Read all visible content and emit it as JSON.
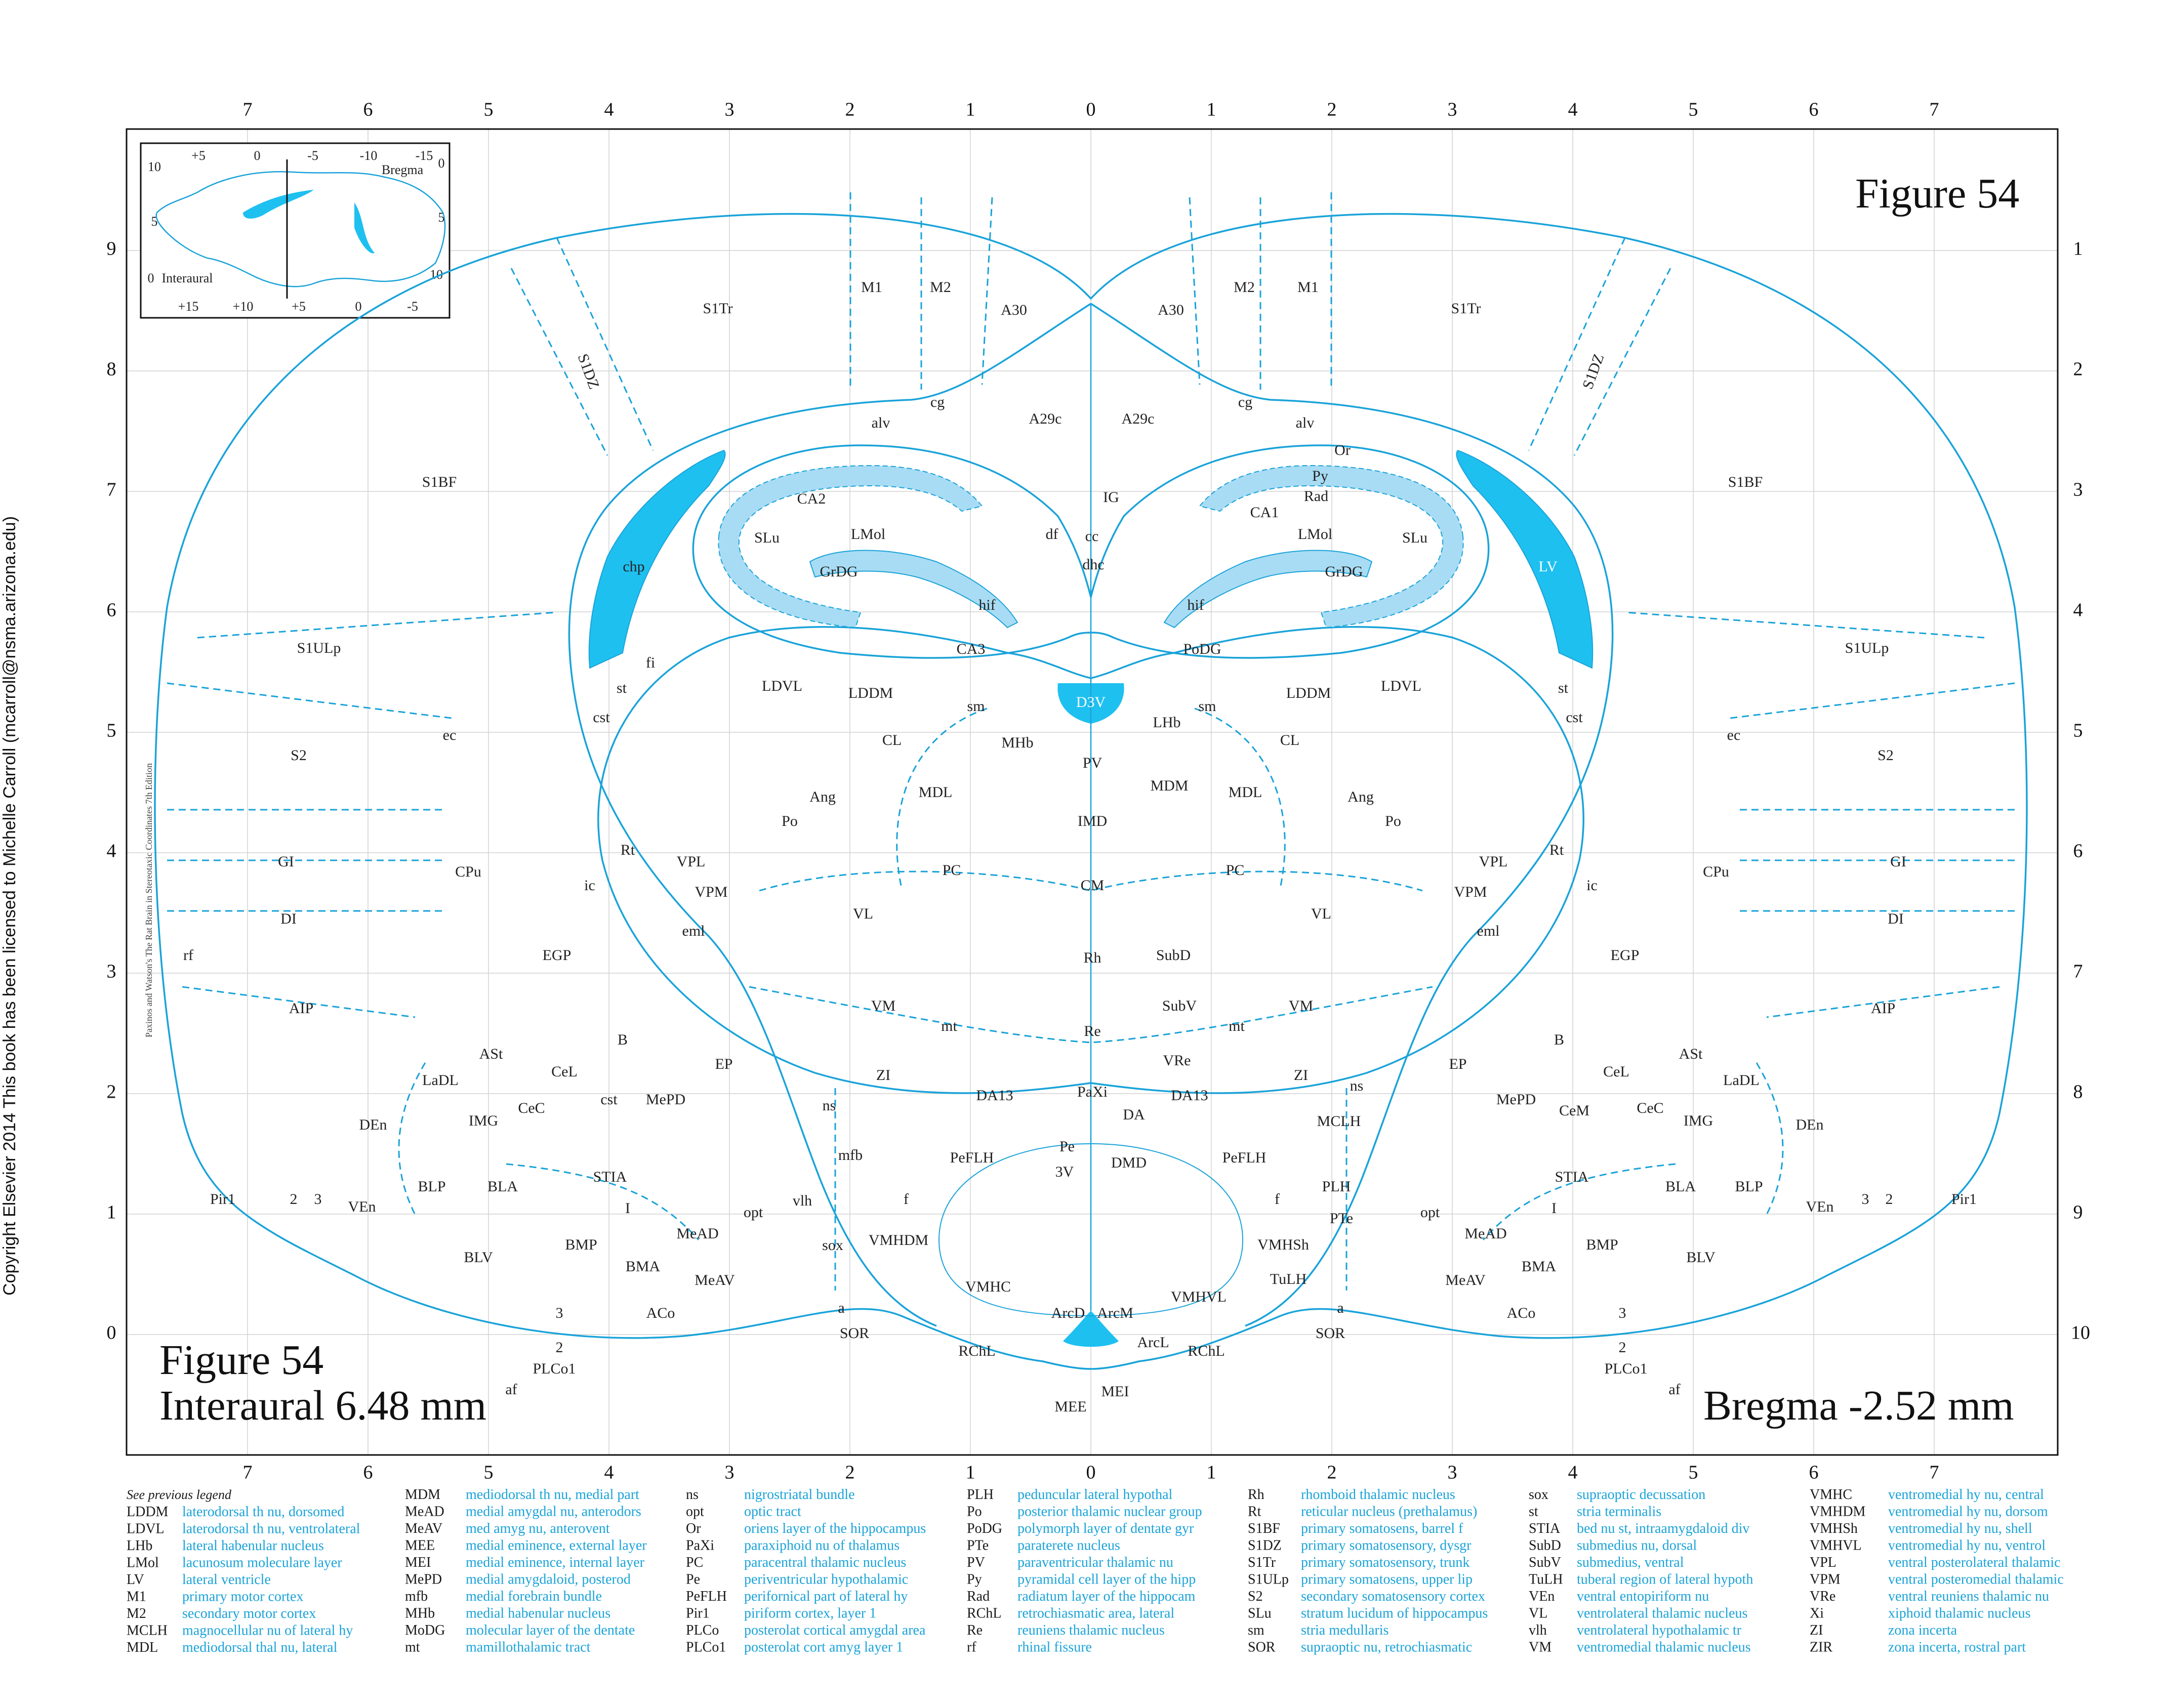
{
  "side_note": "Copyright Elsevier 2014 This book has been licensed to Michelle Carroll (mcarroll@nsma.arizona.edu)",
  "book_title": "Paxinos and Watson's The Rat Brain in Stereotaxic Coordinates    7th Edition",
  "figure_label": "Figure 54",
  "interaural_label": "Interaural 6.48 mm",
  "bregma_label": "Bregma -2.52 mm",
  "top_ticks": [
    "7",
    "6",
    "5",
    "4",
    "3",
    "2",
    "1",
    "0",
    "1",
    "2",
    "3",
    "4",
    "5",
    "6",
    "7"
  ],
  "bottom_ticks": [
    "7",
    "6",
    "5",
    "4",
    "3",
    "2",
    "1",
    "0",
    "1",
    "2",
    "3",
    "4",
    "5",
    "6",
    "7"
  ],
  "left_ticks": [
    "9",
    "8",
    "7",
    "6",
    "5",
    "4",
    "3",
    "2",
    "1",
    "0"
  ],
  "right_ticks": [
    "1",
    "2",
    "3",
    "4",
    "5",
    "6",
    "7",
    "8",
    "9",
    "10"
  ],
  "inset": {
    "top_ticks": [
      "+5",
      "0",
      "-5",
      "-10",
      "-15"
    ],
    "bottom_ticks": [
      "+15",
      "+10",
      "+5",
      "0",
      "-5"
    ],
    "left_ticks": [
      "10",
      "5",
      "0"
    ],
    "right_ticks": [
      "0",
      "5",
      "10"
    ],
    "bregma": "Bregma",
    "interaural": "Interaural"
  },
  "colors": {
    "line": "#1aa3d9",
    "fill": "#1ec0f0",
    "light_fill": "#a8dcf4",
    "legend_text": "#1aa3d9"
  },
  "regions": {
    "M1": "M1",
    "M2": "M2",
    "A30": "A30",
    "S1Tr": "S1Tr",
    "S1DZ": "S1DZ",
    "S1BF": "S1BF",
    "cg": "cg",
    "A29c": "A29c",
    "alv": "alv",
    "Or": "Or",
    "Py": "Py",
    "Rad": "Rad",
    "CA1": "CA1",
    "CA2": "CA2",
    "CA3": "CA3",
    "SLu": "SLu",
    "LMol": "LMol",
    "GrDG": "GrDG",
    "PoDG": "PoDG",
    "hif": "hif",
    "df": "df",
    "cc": "cc",
    "dhc": "dhc",
    "IG": "IG",
    "chp": "chp",
    "LV": "LV",
    "fi": "fi",
    "st": "st",
    "cst": "cst",
    "ec": "ec",
    "S1ULp": "S1ULp",
    "S2": "S2",
    "GI": "GI",
    "DI": "DI",
    "AIP": "AIP",
    "rf": "rf",
    "CPu": "CPu",
    "LDVL": "LDVL",
    "LDDM": "LDDM",
    "sm": "sm",
    "D3V": "D3V",
    "LHb": "LHb",
    "MHb": "MHb",
    "CL": "CL",
    "PV": "PV",
    "MDM": "MDM",
    "MDL": "MDL",
    "Ang": "Ang",
    "Po": "Po",
    "IMD": "IMD",
    "Rt": "Rt",
    "VPL": "VPL",
    "VPM": "VPM",
    "ic": "ic",
    "PC": "PC",
    "CM": "CM",
    "VL": "VL",
    "eml": "eml",
    "EGP": "EGP",
    "Rh": "Rh",
    "SubD": "SubD",
    "VM": "VM",
    "mt": "mt",
    "Re": "Re",
    "SubV": "SubV",
    "EP": "EP",
    "ZI": "ZI",
    "VRe": "VRe",
    "ASt": "ASt",
    "B": "B",
    "LaDL": "LaDL",
    "CeL": "CeL",
    "CeC": "CeC",
    "CeM": "CeM",
    "IMG": "IMG",
    "MePD": "MePD",
    "ns": "ns",
    "DA13": "DA13",
    "PaXi": "PaXi",
    "DA": "DA",
    "DEn": "DEn",
    "mfb": "mfb",
    "PeFLH": "PeFLH",
    "Pe": "Pe",
    "3V": "3V",
    "DMD": "DMD",
    "MCLH": "MCLH",
    "STIA": "STIA",
    "BLP": "BLP",
    "BLA": "BLA",
    "f": "f",
    "vlh": "vlh",
    "PLH": "PLH",
    "Pir1": "Pir1",
    "2": "2",
    "3": "3",
    "VEn": "VEn",
    "I": "I",
    "MeAD": "MeAD",
    "opt": "opt",
    "PTe": "PTe",
    "VMHDM": "VMHDM",
    "VMHSh": "VMHSh",
    "sox": "sox",
    "BLV": "BLV",
    "BMP": "BMP",
    "BMA": "BMA",
    "MeAV": "MeAV",
    "VMHC": "VMHC",
    "TuLH": "TuLH",
    "VMHVL": "VMHVL",
    "ArcD": "ArcD",
    "ArcM": "ArcM",
    "ACo": "ACo",
    "a": "a",
    "SOR": "SOR",
    "ArcL": "ArcL",
    "RChL": "RChL",
    "PLCo1": "PLCo1",
    "af": "af",
    "MEE": "MEE",
    "MEI": "MEI"
  },
  "legend": {
    "heading": "See previous legend",
    "columns": [
      [
        {
          "abbr": "LDDM",
          "full": "laterodorsal th nu, dorsomed"
        },
        {
          "abbr": "LDVL",
          "full": "laterodorsal th nu, ventrolateral"
        },
        {
          "abbr": "LHb",
          "full": "lateral habenular nucleus"
        },
        {
          "abbr": "LMol",
          "full": "lacunosum moleculare layer"
        },
        {
          "abbr": "LV",
          "full": "lateral ventricle"
        },
        {
          "abbr": "M1",
          "full": "primary motor cortex"
        },
        {
          "abbr": "M2",
          "full": "secondary motor cortex"
        },
        {
          "abbr": "MCLH",
          "full": "magnocellular nu of lateral hy"
        },
        {
          "abbr": "MDL",
          "full": "mediodorsal thal nu, lateral"
        }
      ],
      [
        {
          "abbr": "MDM",
          "full": "mediodorsal th nu, medial part"
        },
        {
          "abbr": "MeAD",
          "full": "medial amygdal nu, anterodors"
        },
        {
          "abbr": "MeAV",
          "full": "med amyg nu, anterovent"
        },
        {
          "abbr": "MEE",
          "full": "medial eminence, external layer"
        },
        {
          "abbr": "MEI",
          "full": "medial eminence, internal layer"
        },
        {
          "abbr": "MePD",
          "full": "medial amygdaloid, posterod"
        },
        {
          "abbr": "mfb",
          "full": "medial forebrain bundle"
        },
        {
          "abbr": "MHb",
          "full": "medial habenular nucleus"
        },
        {
          "abbr": "MoDG",
          "full": "molecular layer of the dentate"
        },
        {
          "abbr": "mt",
          "full": "mamillothalamic tract"
        }
      ],
      [
        {
          "abbr": "ns",
          "full": "nigrostriatal bundle"
        },
        {
          "abbr": "opt",
          "full": "optic tract"
        },
        {
          "abbr": "Or",
          "full": "oriens layer of the hippocampus"
        },
        {
          "abbr": "PaXi",
          "full": "paraxiphoid nu of thalamus"
        },
        {
          "abbr": "PC",
          "full": "paracentral thalamic nucleus"
        },
        {
          "abbr": "Pe",
          "full": "periventricular hypothalamic"
        },
        {
          "abbr": "PeFLH",
          "full": "perifornical part of lateral hy"
        },
        {
          "abbr": "Pir1",
          "full": "piriform cortex, layer 1"
        },
        {
          "abbr": "PLCo",
          "full": "posterolat cortical amygdal area"
        },
        {
          "abbr": "PLCo1",
          "full": "posterolat cort amyg layer 1"
        }
      ],
      [
        {
          "abbr": "PLH",
          "full": "peduncular lateral hypothal"
        },
        {
          "abbr": "Po",
          "full": "posterior thalamic nuclear group"
        },
        {
          "abbr": "PoDG",
          "full": "polymorph layer of dentate gyr"
        },
        {
          "abbr": "PTe",
          "full": "paraterete nucleus"
        },
        {
          "abbr": "PV",
          "full": "paraventricular thalamic nu"
        },
        {
          "abbr": "Py",
          "full": "pyramidal cell layer of the hipp"
        },
        {
          "abbr": "Rad",
          "full": "radiatum layer of the hippocam"
        },
        {
          "abbr": "RChL",
          "full": "retrochiasmatic area, lateral"
        },
        {
          "abbr": "Re",
          "full": "reuniens thalamic nucleus"
        },
        {
          "abbr": "rf",
          "full": "rhinal fissure"
        }
      ],
      [
        {
          "abbr": "Rh",
          "full": "rhomboid thalamic nucleus"
        },
        {
          "abbr": "Rt",
          "full": "reticular nucleus (prethalamus)"
        },
        {
          "abbr": "S1BF",
          "full": "primary somatosens, barrel f"
        },
        {
          "abbr": "S1DZ",
          "full": "primary somatosensory, dysgr"
        },
        {
          "abbr": "S1Tr",
          "full": "primary somatosensory, trunk"
        },
        {
          "abbr": "S1ULp",
          "full": "primary somatosens, upper lip"
        },
        {
          "abbr": "S2",
          "full": "secondary somatosensory cortex"
        },
        {
          "abbr": "SLu",
          "full": "stratum lucidum of hippocampus"
        },
        {
          "abbr": "sm",
          "full": "stria medullaris"
        },
        {
          "abbr": "SOR",
          "full": "supraoptic nu, retrochiasmatic"
        }
      ],
      [
        {
          "abbr": "sox",
          "full": "supraoptic decussation"
        },
        {
          "abbr": "st",
          "full": "stria terminalis"
        },
        {
          "abbr": "STIA",
          "full": "bed nu st, intraamygdaloid div"
        },
        {
          "abbr": "SubD",
          "full": "submedius nu, dorsal"
        },
        {
          "abbr": "SubV",
          "full": "submedius, ventral"
        },
        {
          "abbr": "TuLH",
          "full": "tuberal region of lateral hypoth"
        },
        {
          "abbr": "VEn",
          "full": "ventral entopiriform nu"
        },
        {
          "abbr": "VL",
          "full": "ventrolateral thalamic nucleus"
        },
        {
          "abbr": "vlh",
          "full": "ventrolateral hypothalamic tr"
        },
        {
          "abbr": "VM",
          "full": "ventromedial thalamic nucleus"
        }
      ],
      [
        {
          "abbr": "VMHC",
          "full": "ventromedial hy nu, central"
        },
        {
          "abbr": "VMHDM",
          "full": "ventromedial hy nu, dorsom"
        },
        {
          "abbr": "VMHSh",
          "full": "ventromedial hy nu, shell"
        },
        {
          "abbr": "VMHVL",
          "full": "ventromedial hy nu, ventrol"
        },
        {
          "abbr": "VPL",
          "full": "ventral posterolateral thalamic"
        },
        {
          "abbr": "VPM",
          "full": "ventral posteromedial thalamic"
        },
        {
          "abbr": "VRe",
          "full": "ventral reuniens thalamic nu"
        },
        {
          "abbr": "Xi",
          "full": "xiphoid thalamic nucleus"
        },
        {
          "abbr": "ZI",
          "full": "zona incerta"
        },
        {
          "abbr": "ZIR",
          "full": "zona incerta, rostral part"
        }
      ]
    ]
  }
}
